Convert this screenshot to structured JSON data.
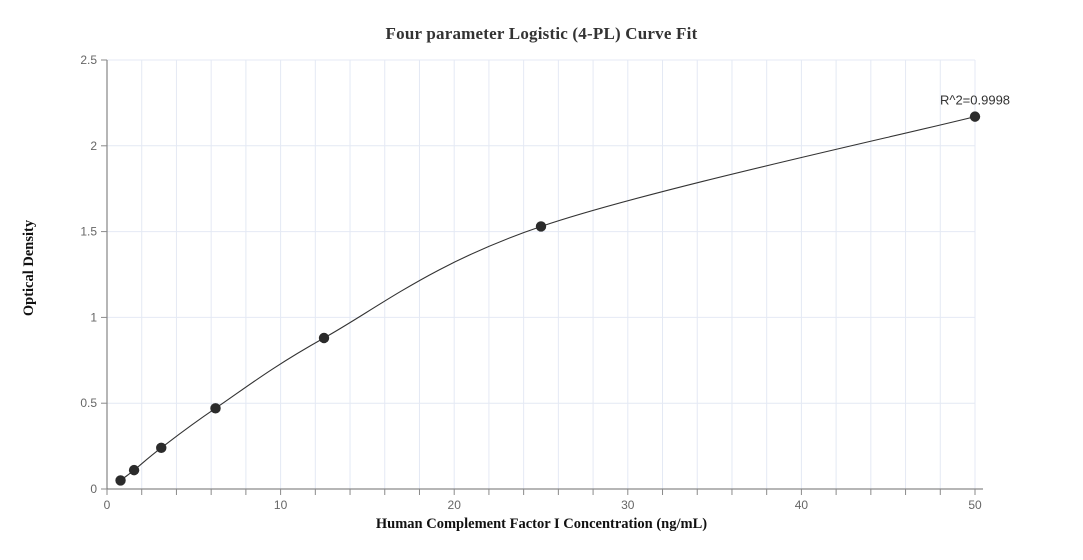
{
  "chart_data": {
    "type": "scatter",
    "title": "Four parameter Logistic (4-PL) Curve Fit",
    "xlabel": "Human Complement Factor I Concentration (ng/mL)",
    "ylabel": "Optical Density",
    "annotation": "R^2=0.9998",
    "x": [
      0.78,
      1.56,
      3.125,
      6.25,
      12.5,
      25,
      50
    ],
    "y": [
      0.05,
      0.11,
      0.24,
      0.47,
      0.88,
      1.53,
      2.17
    ],
    "xlim": [
      0,
      50
    ],
    "ylim": [
      0,
      2.5
    ],
    "x_ticks": [
      0,
      10,
      20,
      30,
      40,
      50
    ],
    "y_ticks": [
      0,
      0.5,
      1,
      1.5,
      2,
      2.5
    ],
    "x_grid_step": 2,
    "y_grid_step": 0.5,
    "grid": true,
    "legend_position": "none",
    "curve_style": "smooth-through-points",
    "colors": {
      "background": "#ffffff",
      "grid": "#e4e9f4",
      "axis": "#6e6e6e",
      "tick": "#8a8a8a",
      "tick_text": "#666666",
      "curve": "#333333",
      "point": "#2b2b2b",
      "title_text": "#333333",
      "axis_label_text": "#111111",
      "annotation_text": "#333333"
    }
  }
}
